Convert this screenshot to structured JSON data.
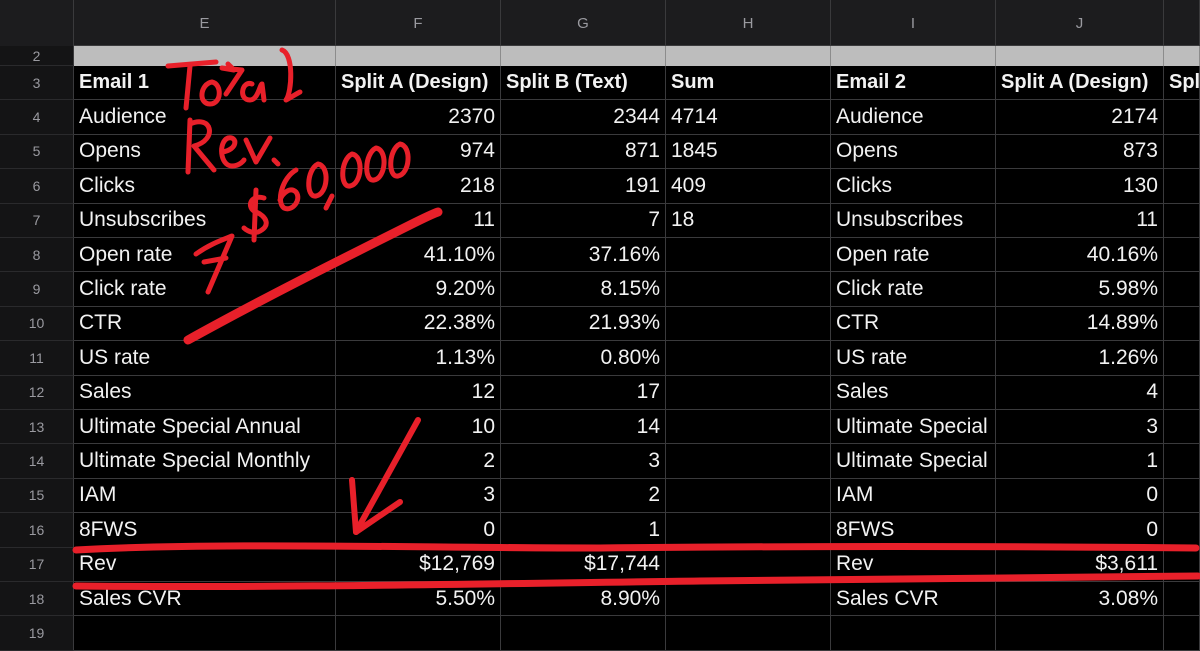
{
  "columns": [
    "E",
    "F",
    "G",
    "H",
    "I",
    "J"
  ],
  "row_numbers": [
    "2",
    "3",
    "4",
    "5",
    "6",
    "7",
    "8",
    "9",
    "10",
    "11",
    "12",
    "13",
    "14",
    "15",
    "16",
    "17",
    "18",
    "19"
  ],
  "rows": [
    [
      "Email 1",
      "Split A (Design)",
      "Split B (Text)",
      "Sum",
      "Email 2",
      "Split A (Design)",
      "Spl"
    ],
    [
      "Audience",
      "2370",
      "2344",
      "4714",
      "Audience",
      "2174",
      ""
    ],
    [
      "Opens",
      "974",
      "871",
      "1845",
      "Opens",
      "873",
      ""
    ],
    [
      "Clicks",
      "218",
      "191",
      "409",
      "Clicks",
      "130",
      ""
    ],
    [
      "Unsubscribes",
      "11",
      "7",
      "18",
      "Unsubscribes",
      "11",
      ""
    ],
    [
      "Open rate",
      "41.10%",
      "37.16%",
      "",
      "Open rate",
      "40.16%",
      ""
    ],
    [
      "Click rate",
      "9.20%",
      "8.15%",
      "",
      "Click rate",
      "5.98%",
      ""
    ],
    [
      "CTR",
      "22.38%",
      "21.93%",
      "",
      "CTR",
      "14.89%",
      ""
    ],
    [
      "US rate",
      "1.13%",
      "0.80%",
      "",
      "US rate",
      "1.26%",
      ""
    ],
    [
      "Sales",
      "12",
      "17",
      "",
      "Sales",
      "4",
      ""
    ],
    [
      "Ultimate Special Annual",
      "10",
      "14",
      "",
      "Ultimate Special",
      "3",
      ""
    ],
    [
      "Ultimate Special Monthly",
      "2",
      "3",
      "",
      "Ultimate Special",
      "1",
      ""
    ],
    [
      "IAM",
      "3",
      "2",
      "",
      "IAM",
      "0",
      ""
    ],
    [
      "8FWS",
      "0",
      "1",
      "",
      "8FWS",
      "0",
      ""
    ],
    [
      "Rev",
      "$12,769",
      "$17,744",
      "",
      "Rev",
      "$3,611",
      ""
    ],
    [
      "Sales CVR",
      "5.50%",
      "8.90%",
      "",
      "Sales CVR",
      "3.08%",
      ""
    ]
  ],
  "annotations": {
    "handwritten_lines": [
      "Total",
      "Rev.",
      "7 $60,000"
    ],
    "ink_color": "#e8202a"
  },
  "colors": {
    "background": "#000000",
    "header_bg": "#1c1c1e",
    "grid": "#3a3a3c",
    "header_text": "#9a9aa0",
    "cell_text": "#f2f2f2",
    "frozen_row": "#bdbdbd"
  }
}
